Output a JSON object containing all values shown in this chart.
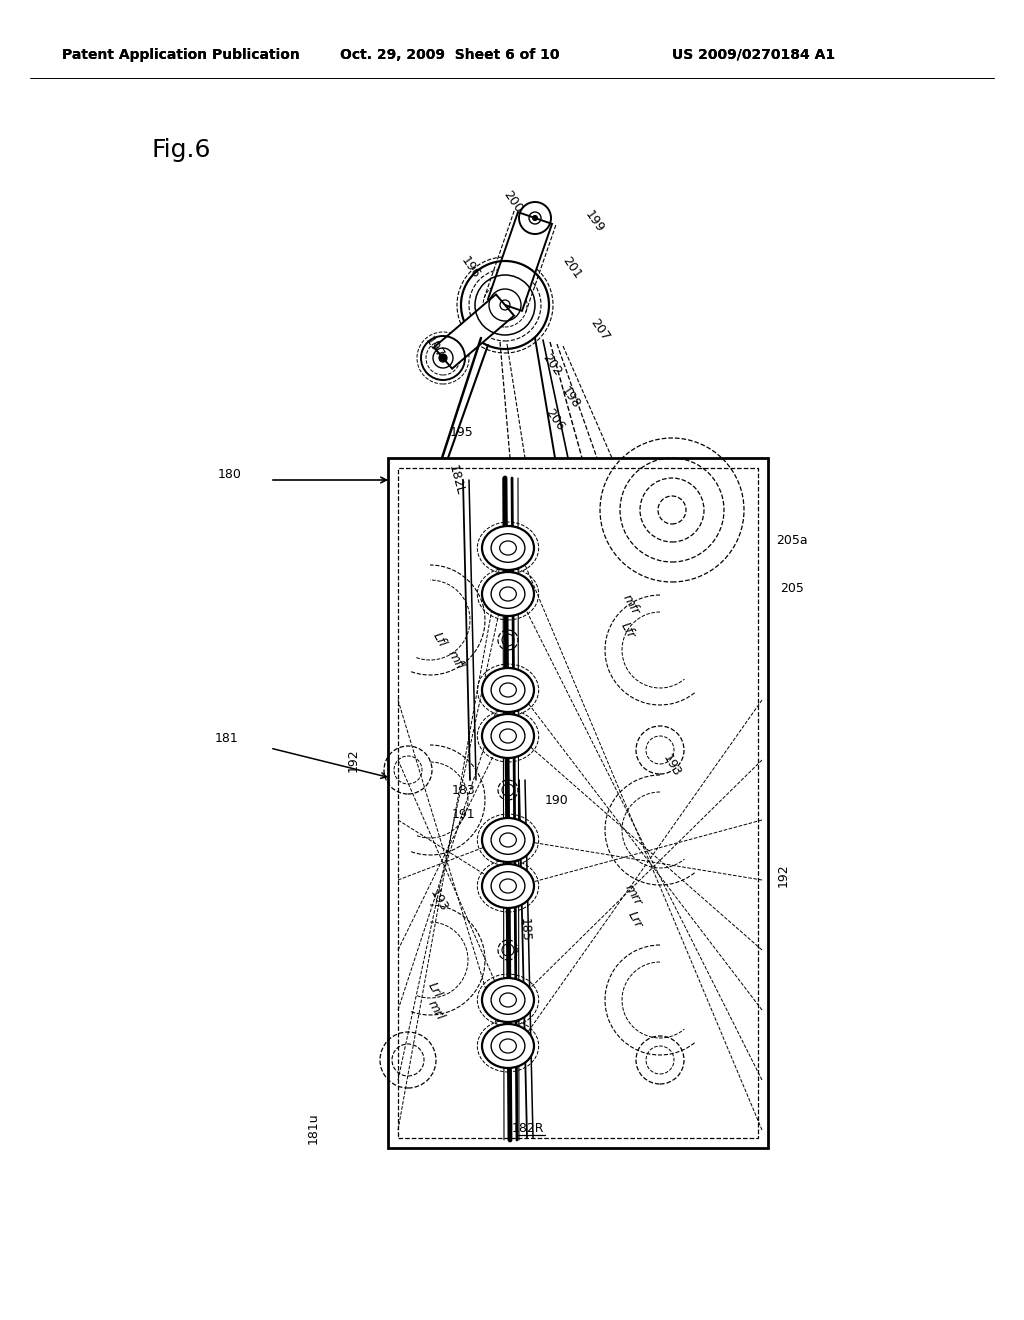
{
  "header_left": "Patent Application Publication",
  "header_mid": "Oct. 29, 2009  Sheet 6 of 10",
  "header_right": "US 2009/0270184 A1",
  "fig_label": "Fig.6",
  "bg_color": "#ffffff"
}
